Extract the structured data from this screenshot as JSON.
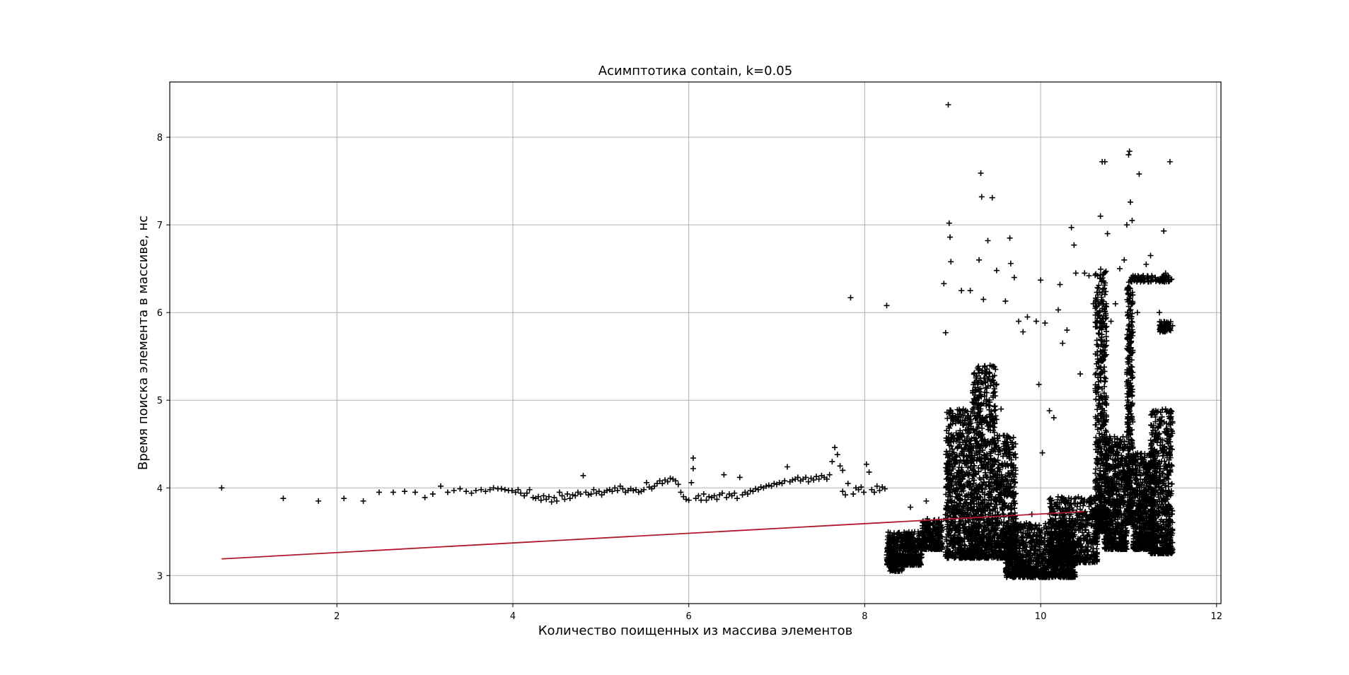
{
  "chart_data": {
    "type": "scatter",
    "title": "Асимптотика contain, k=0.05",
    "xlabel": "Количество поищенных из массива элементов",
    "ylabel": "Время поиска элемента в массиве, нс",
    "xlim": [
      0.1,
      12.05
    ],
    "ylim": [
      2.68,
      8.63
    ],
    "xticks": [
      2,
      4,
      6,
      8,
      10,
      12
    ],
    "yticks": [
      3,
      4,
      5,
      6,
      7,
      8
    ],
    "grid": true,
    "marker": "+",
    "point_color": "#000000",
    "line_color": "#b2182b",
    "fit_line": {
      "x": [
        0.69,
        10.5
      ],
      "y": [
        3.19,
        3.73
      ]
    },
    "points": [
      [
        0.69,
        4.0
      ],
      [
        1.39,
        3.88
      ],
      [
        1.79,
        3.85
      ],
      [
        2.08,
        3.88
      ],
      [
        2.3,
        3.85
      ],
      [
        2.48,
        3.95
      ],
      [
        2.64,
        3.95
      ],
      [
        2.77,
        3.96
      ],
      [
        2.89,
        3.95
      ],
      [
        3.0,
        3.89
      ],
      [
        3.09,
        3.93
      ],
      [
        3.18,
        4.02
      ],
      [
        3.26,
        3.95
      ],
      [
        3.33,
        3.97
      ],
      [
        3.4,
        3.99
      ],
      [
        3.47,
        3.96
      ],
      [
        3.53,
        3.94
      ],
      [
        3.58,
        3.97
      ],
      [
        3.64,
        3.98
      ],
      [
        3.69,
        3.96
      ],
      [
        3.74,
        3.98
      ],
      [
        3.78,
        4.0
      ],
      [
        3.83,
        3.99
      ],
      [
        3.87,
        3.99
      ],
      [
        3.91,
        3.98
      ],
      [
        3.95,
        3.97
      ],
      [
        3.99,
        3.97
      ],
      [
        4.03,
        3.95
      ],
      [
        4.06,
        3.98
      ],
      [
        4.09,
        3.94
      ],
      [
        4.13,
        3.91
      ],
      [
        4.16,
        3.94
      ],
      [
        4.19,
        3.98
      ],
      [
        4.23,
        3.89
      ],
      [
        4.26,
        3.88
      ],
      [
        4.29,
        3.9
      ],
      [
        4.32,
        3.86
      ],
      [
        4.35,
        3.91
      ],
      [
        4.38,
        3.87
      ],
      [
        4.41,
        3.9
      ],
      [
        4.44,
        3.84
      ],
      [
        4.47,
        3.89
      ],
      [
        4.5,
        3.85
      ],
      [
        4.53,
        3.95
      ],
      [
        4.56,
        3.91
      ],
      [
        4.59,
        3.87
      ],
      [
        4.62,
        3.93
      ],
      [
        4.65,
        3.88
      ],
      [
        4.68,
        3.92
      ],
      [
        4.71,
        3.91
      ],
      [
        4.74,
        3.95
      ],
      [
        4.77,
        3.93
      ],
      [
        4.8,
        4.14
      ],
      [
        4.83,
        3.95
      ],
      [
        4.86,
        3.92
      ],
      [
        4.89,
        3.93
      ],
      [
        4.92,
        3.98
      ],
      [
        4.95,
        3.94
      ],
      [
        4.98,
        3.96
      ],
      [
        5.01,
        3.92
      ],
      [
        5.04,
        3.95
      ],
      [
        5.07,
        3.97
      ],
      [
        5.1,
        3.98
      ],
      [
        5.13,
        3.96
      ],
      [
        5.16,
        4.0
      ],
      [
        5.19,
        3.97
      ],
      [
        5.22,
        4.02
      ],
      [
        5.25,
        3.99
      ],
      [
        5.28,
        3.95
      ],
      [
        5.31,
        3.97
      ],
      [
        5.34,
        3.99
      ],
      [
        5.37,
        3.97
      ],
      [
        5.4,
        3.98
      ],
      [
        5.43,
        3.95
      ],
      [
        5.46,
        3.96
      ],
      [
        5.49,
        3.98
      ],
      [
        5.52,
        4.06
      ],
      [
        5.55,
        4.01
      ],
      [
        5.58,
        3.99
      ],
      [
        5.61,
        4.02
      ],
      [
        5.64,
        4.05
      ],
      [
        5.67,
        4.08
      ],
      [
        5.7,
        4.05
      ],
      [
        5.73,
        4.09
      ],
      [
        5.76,
        4.07
      ],
      [
        5.79,
        4.11
      ],
      [
        5.82,
        4.1
      ],
      [
        5.85,
        4.08
      ],
      [
        5.88,
        4.04
      ],
      [
        5.91,
        3.95
      ],
      [
        5.94,
        3.9
      ],
      [
        5.97,
        3.87
      ],
      [
        6.0,
        3.86
      ],
      [
        6.03,
        4.06
      ],
      [
        6.05,
        4.34
      ],
      [
        6.05,
        4.22
      ],
      [
        6.08,
        3.88
      ],
      [
        6.11,
        3.91
      ],
      [
        6.14,
        3.86
      ],
      [
        6.17,
        3.93
      ],
      [
        6.2,
        3.86
      ],
      [
        6.23,
        3.9
      ],
      [
        6.26,
        3.89
      ],
      [
        6.29,
        3.91
      ],
      [
        6.32,
        3.87
      ],
      [
        6.35,
        3.92
      ],
      [
        6.38,
        3.94
      ],
      [
        6.4,
        4.15
      ],
      [
        6.43,
        3.89
      ],
      [
        6.46,
        3.93
      ],
      [
        6.49,
        3.91
      ],
      [
        6.52,
        3.94
      ],
      [
        6.55,
        3.88
      ],
      [
        6.58,
        4.12
      ],
      [
        6.61,
        3.92
      ],
      [
        6.64,
        3.95
      ],
      [
        6.67,
        3.93
      ],
      [
        6.7,
        3.97
      ],
      [
        6.73,
        3.96
      ],
      [
        6.76,
        3.99
      ],
      [
        6.79,
        3.98
      ],
      [
        6.82,
        4.01
      ],
      [
        6.85,
        4.0
      ],
      [
        6.88,
        4.02
      ],
      [
        6.91,
        4.03
      ],
      [
        6.94,
        4.02
      ],
      [
        6.97,
        4.05
      ],
      [
        7.0,
        4.04
      ],
      [
        7.03,
        4.06
      ],
      [
        7.06,
        4.05
      ],
      [
        7.09,
        4.08
      ],
      [
        7.12,
        4.24
      ],
      [
        7.15,
        4.07
      ],
      [
        7.18,
        4.09
      ],
      [
        7.21,
        4.1
      ],
      [
        7.24,
        4.12
      ],
      [
        7.27,
        4.08
      ],
      [
        7.3,
        4.1
      ],
      [
        7.33,
        4.12
      ],
      [
        7.36,
        4.07
      ],
      [
        7.39,
        4.11
      ],
      [
        7.42,
        4.09
      ],
      [
        7.45,
        4.13
      ],
      [
        7.48,
        4.1
      ],
      [
        7.51,
        4.14
      ],
      [
        7.54,
        4.12
      ],
      [
        7.57,
        4.1
      ],
      [
        7.6,
        4.15
      ],
      [
        7.63,
        4.3
      ],
      [
        7.66,
        4.46
      ],
      [
        7.69,
        4.38
      ],
      [
        7.72,
        4.25
      ],
      [
        7.75,
        4.2
      ],
      [
        7.75,
        3.96
      ],
      [
        7.78,
        3.92
      ],
      [
        7.81,
        4.05
      ],
      [
        7.84,
        6.17
      ],
      [
        7.87,
        3.93
      ],
      [
        7.9,
        4.0
      ],
      [
        7.93,
        3.98
      ],
      [
        7.96,
        4.01
      ],
      [
        7.99,
        3.95
      ],
      [
        8.02,
        4.27
      ],
      [
        8.05,
        4.18
      ],
      [
        8.08,
        3.98
      ],
      [
        8.11,
        3.95
      ],
      [
        8.14,
        4.02
      ],
      [
        8.17,
        3.97
      ],
      [
        8.2,
        4.01
      ],
      [
        8.23,
        3.99
      ],
      [
        8.25,
        6.08
      ],
      [
        8.28,
        3.25
      ],
      [
        8.32,
        3.2
      ],
      [
        8.36,
        3.3
      ],
      [
        8.4,
        3.28
      ],
      [
        8.44,
        3.22
      ],
      [
        8.48,
        3.35
      ],
      [
        8.52,
        3.78
      ],
      [
        8.55,
        3.3
      ],
      [
        8.6,
        3.38
      ],
      [
        8.65,
        3.42
      ],
      [
        8.7,
        3.85
      ],
      [
        8.7,
        3.5
      ],
      [
        8.75,
        3.45
      ],
      [
        8.8,
        3.4
      ],
      [
        8.85,
        3.5
      ],
      [
        8.9,
        6.33
      ],
      [
        8.92,
        5.77
      ],
      [
        8.93,
        4.1
      ],
      [
        8.95,
        8.37
      ],
      [
        8.96,
        7.02
      ],
      [
        8.97,
        6.86
      ],
      [
        8.98,
        6.58
      ],
      [
        9.0,
        4.85
      ],
      [
        9.05,
        3.9
      ],
      [
        9.1,
        6.25
      ],
      [
        9.2,
        6.25
      ],
      [
        9.3,
        6.6
      ],
      [
        9.32,
        7.59
      ],
      [
        9.33,
        7.32
      ],
      [
        9.35,
        6.15
      ],
      [
        9.37,
        5.2
      ],
      [
        9.4,
        6.82
      ],
      [
        9.45,
        7.31
      ],
      [
        9.5,
        6.48
      ],
      [
        9.55,
        4.9
      ],
      [
        9.6,
        6.13
      ],
      [
        9.65,
        6.85
      ],
      [
        9.66,
        6.56
      ],
      [
        9.7,
        6.4
      ],
      [
        9.75,
        5.9
      ],
      [
        9.8,
        5.78
      ],
      [
        9.85,
        5.95
      ],
      [
        9.9,
        3.7
      ],
      [
        9.95,
        5.9
      ],
      [
        9.98,
        5.18
      ],
      [
        10.0,
        6.37
      ],
      [
        10.02,
        4.4
      ],
      [
        10.05,
        5.88
      ],
      [
        10.1,
        4.88
      ],
      [
        10.15,
        4.8
      ],
      [
        10.2,
        6.03
      ],
      [
        10.22,
        6.32
      ],
      [
        10.25,
        5.65
      ],
      [
        10.3,
        5.8
      ],
      [
        10.35,
        6.97
      ],
      [
        10.38,
        6.77
      ],
      [
        10.4,
        6.45
      ],
      [
        10.45,
        5.3
      ],
      [
        10.5,
        6.45
      ],
      [
        10.55,
        6.42
      ],
      [
        10.6,
        6.1
      ],
      [
        10.65,
        6.2
      ],
      [
        10.68,
        7.1
      ],
      [
        10.7,
        7.72
      ],
      [
        10.73,
        7.72
      ],
      [
        10.76,
        6.9
      ],
      [
        10.8,
        5.9
      ],
      [
        10.85,
        6.1
      ],
      [
        10.9,
        6.5
      ],
      [
        10.95,
        6.6
      ],
      [
        10.98,
        7.0
      ],
      [
        11.0,
        7.8
      ],
      [
        11.01,
        7.84
      ],
      [
        11.02,
        7.26
      ],
      [
        11.04,
        7.05
      ],
      [
        11.05,
        6.42
      ],
      [
        11.1,
        6.0
      ],
      [
        11.12,
        7.58
      ],
      [
        11.15,
        6.4
      ],
      [
        11.2,
        6.55
      ],
      [
        11.25,
        6.65
      ],
      [
        11.3,
        6.4
      ],
      [
        11.35,
        6.0
      ],
      [
        11.4,
        6.93
      ],
      [
        11.42,
        6.45
      ],
      [
        11.45,
        6.42
      ],
      [
        11.47,
        7.72
      ],
      [
        11.49,
        6.38
      ],
      [
        11.5,
        5.85
      ]
    ],
    "clusters": [
      {
        "x": [
          8.25,
          8.65
        ],
        "y": [
          3.12,
          3.5
        ],
        "count": 500
      },
      {
        "x": [
          8.65,
          8.88
        ],
        "y": [
          3.3,
          3.65
        ],
        "count": 260
      },
      {
        "x": [
          8.92,
          9.22
        ],
        "y": [
          3.2,
          4.9
        ],
        "count": 700
      },
      {
        "x": [
          9.22,
          9.5
        ],
        "y": [
          3.2,
          5.4
        ],
        "count": 800
      },
      {
        "x": [
          9.5,
          9.72
        ],
        "y": [
          3.2,
          4.6
        ],
        "count": 450
      },
      {
        "x": [
          9.6,
          10.4
        ],
        "y": [
          2.98,
          3.6
        ],
        "count": 1000
      },
      {
        "x": [
          10.1,
          10.65
        ],
        "y": [
          3.15,
          3.9
        ],
        "count": 600
      },
      {
        "x": [
          10.62,
          10.75
        ],
        "y": [
          3.5,
          6.5
        ],
        "count": 500
      },
      {
        "x": [
          10.72,
          10.98
        ],
        "y": [
          3.3,
          4.6
        ],
        "count": 600
      },
      {
        "x": [
          10.98,
          11.05
        ],
        "y": [
          3.6,
          6.4
        ],
        "count": 380
      },
      {
        "x": [
          11.05,
          11.3
        ],
        "y": [
          3.3,
          4.4
        ],
        "count": 600
      },
      {
        "x": [
          11.25,
          11.5
        ],
        "y": [
          3.25,
          4.9
        ],
        "count": 600
      },
      {
        "x": [
          11.02,
          11.48
        ],
        "y": [
          6.35,
          6.42
        ],
        "count": 90
      },
      {
        "x": [
          11.35,
          11.48
        ],
        "y": [
          5.78,
          5.9
        ],
        "count": 60
      },
      {
        "x": [
          8.28,
          8.45
        ],
        "y": [
          3.05,
          3.16
        ],
        "count": 40
      }
    ]
  }
}
